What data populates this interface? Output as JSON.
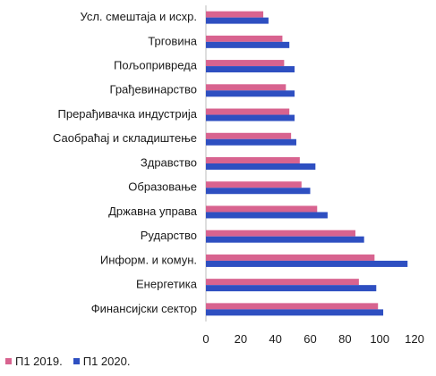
{
  "chart_data": {
    "type": "bar",
    "orientation": "horizontal",
    "categories": [
      "Усл. смештаја и исхр.",
      "Трговина",
      "Пољопривреда",
      "Грађевинарство",
      "Прерађивачка индустрија",
      "Саобраћај и складиштење",
      "Здравство",
      "Образовање",
      "Државна управа",
      "Рударство",
      "Информ. и комун.",
      "Енергетика",
      "Финансијски сектор"
    ],
    "series": [
      {
        "name": "П1  2019.",
        "color": "#d8638f",
        "values": [
          33,
          44,
          45,
          46,
          48,
          49,
          54,
          55,
          64,
          86,
          97,
          88,
          99
        ]
      },
      {
        "name": "П1  2020.",
        "color": "#2e4fc1",
        "values": [
          36,
          48,
          51,
          51,
          51,
          52,
          63,
          60,
          70,
          91,
          116,
          98,
          102
        ]
      }
    ],
    "xlim": [
      0,
      120
    ],
    "xticks": [
      "0",
      "20",
      "40",
      "60",
      "80",
      "100",
      "120"
    ],
    "title": "",
    "xlabel": "",
    "ylabel": "",
    "grid": false,
    "legend_position": "bottom-left"
  }
}
